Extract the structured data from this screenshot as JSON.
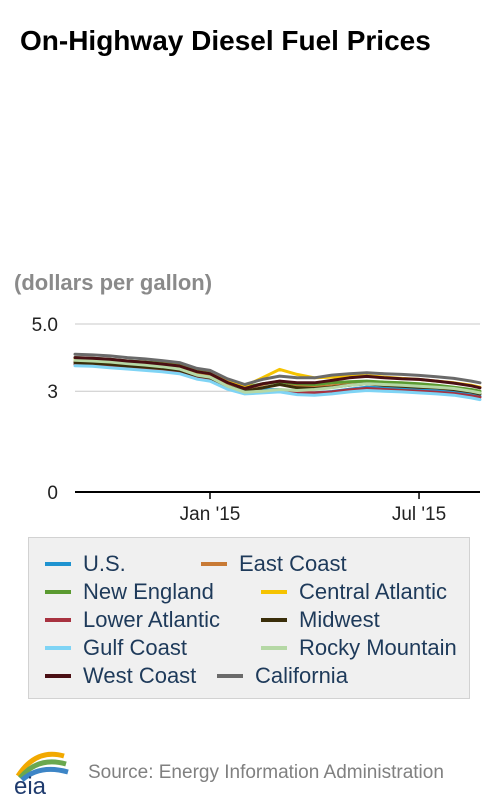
{
  "title": "On-Highway Diesel Fuel Prices",
  "units_label": "(dollars per gallon)",
  "source": "Source: Energy Information Administration",
  "logo_text": "eia",
  "chart_data": {
    "type": "line",
    "title": "On-Highway Diesel Fuel Prices",
    "ylabel": "(dollars per gallon)",
    "ylim": [
      0,
      5.0
    ],
    "yticks": [
      {
        "value": 0,
        "label": "0"
      },
      {
        "value": 3,
        "label": "3"
      },
      {
        "value": 5,
        "label": "5.0"
      }
    ],
    "xticks": [
      {
        "x": 31,
        "label": "Jan '15"
      },
      {
        "x": 79,
        "label": "Jul '15"
      }
    ],
    "x_range": [
      0,
      93
    ],
    "grid": true,
    "legend_placement": "bottom",
    "x": [
      0,
      4,
      8,
      12,
      16,
      20,
      24,
      28,
      31,
      35,
      39,
      43,
      47,
      51,
      55,
      59,
      63,
      67,
      71,
      75,
      79,
      83,
      87,
      91,
      93
    ],
    "series": [
      {
        "name": "U.S.",
        "color": "#1f93d0",
        "values": [
          3.82,
          3.8,
          3.77,
          3.72,
          3.69,
          3.65,
          3.6,
          3.43,
          3.37,
          3.12,
          2.97,
          3.04,
          3.05,
          2.95,
          2.95,
          2.99,
          3.06,
          3.12,
          3.1,
          3.08,
          3.05,
          3.02,
          2.98,
          2.9,
          2.85
        ]
      },
      {
        "name": "East Coast",
        "color": "#c87a35",
        "values": [
          3.9,
          3.88,
          3.85,
          3.8,
          3.77,
          3.73,
          3.67,
          3.5,
          3.45,
          3.22,
          3.08,
          3.2,
          3.3,
          3.18,
          3.12,
          3.16,
          3.2,
          3.22,
          3.18,
          3.15,
          3.12,
          3.1,
          3.05,
          2.98,
          2.93
        ]
      },
      {
        "name": "New England",
        "color": "#5a9a30",
        "values": [
          4.0,
          3.98,
          3.95,
          3.9,
          3.87,
          3.83,
          3.77,
          3.6,
          3.55,
          3.3,
          3.12,
          3.22,
          3.28,
          3.22,
          3.2,
          3.25,
          3.28,
          3.3,
          3.27,
          3.25,
          3.22,
          3.18,
          3.12,
          3.05,
          3.0
        ]
      },
      {
        "name": "Central Atlantic",
        "color": "#f5c300",
        "values": [
          3.98,
          3.96,
          3.93,
          3.88,
          3.85,
          3.81,
          3.75,
          3.58,
          3.52,
          3.3,
          3.15,
          3.4,
          3.65,
          3.5,
          3.4,
          3.42,
          3.44,
          3.46,
          3.42,
          3.38,
          3.35,
          3.3,
          3.25,
          3.18,
          3.12
        ]
      },
      {
        "name": "Lower Atlantic",
        "color": "#a83240",
        "values": [
          3.8,
          3.78,
          3.75,
          3.7,
          3.67,
          3.63,
          3.57,
          3.41,
          3.36,
          3.1,
          2.97,
          3.0,
          3.02,
          2.98,
          2.95,
          2.98,
          3.04,
          3.08,
          3.05,
          3.02,
          3.0,
          2.97,
          2.93,
          2.86,
          2.82
        ]
      },
      {
        "name": "Midwest",
        "color": "#3a2e0a",
        "values": [
          3.85,
          3.83,
          3.8,
          3.75,
          3.72,
          3.68,
          3.62,
          3.46,
          3.4,
          3.15,
          3.0,
          3.1,
          3.2,
          3.1,
          3.08,
          3.12,
          3.18,
          3.22,
          3.18,
          3.15,
          3.12,
          3.1,
          3.05,
          2.98,
          2.92
        ]
      },
      {
        "name": "Gulf Coast",
        "color": "#7fd4f5",
        "values": [
          3.76,
          3.74,
          3.7,
          3.66,
          3.62,
          3.58,
          3.52,
          3.36,
          3.3,
          3.06,
          2.92,
          2.95,
          2.98,
          2.9,
          2.88,
          2.92,
          2.98,
          3.02,
          3.0,
          2.98,
          2.95,
          2.92,
          2.88,
          2.8,
          2.75
        ]
      },
      {
        "name": "Rocky Mountain",
        "color": "#b5d8a5",
        "values": [
          3.92,
          3.9,
          3.87,
          3.82,
          3.78,
          3.73,
          3.66,
          3.48,
          3.42,
          3.15,
          2.97,
          3.0,
          3.05,
          3.02,
          3.05,
          3.1,
          3.18,
          3.22,
          3.2,
          3.18,
          3.15,
          3.12,
          3.08,
          3.0,
          2.95
        ]
      },
      {
        "name": "West Coast",
        "color": "#4a0f14",
        "values": [
          4.0,
          3.98,
          3.95,
          3.9,
          3.86,
          3.81,
          3.75,
          3.58,
          3.52,
          3.26,
          3.08,
          3.22,
          3.3,
          3.25,
          3.25,
          3.32,
          3.4,
          3.44,
          3.4,
          3.37,
          3.35,
          3.3,
          3.24,
          3.16,
          3.1
        ]
      },
      {
        "name": "California",
        "color": "#6a6a6a",
        "values": [
          4.1,
          4.08,
          4.05,
          4.0,
          3.96,
          3.91,
          3.85,
          3.68,
          3.62,
          3.37,
          3.2,
          3.35,
          3.45,
          3.4,
          3.4,
          3.48,
          3.52,
          3.55,
          3.52,
          3.5,
          3.47,
          3.43,
          3.38,
          3.3,
          3.25
        ]
      }
    ]
  }
}
